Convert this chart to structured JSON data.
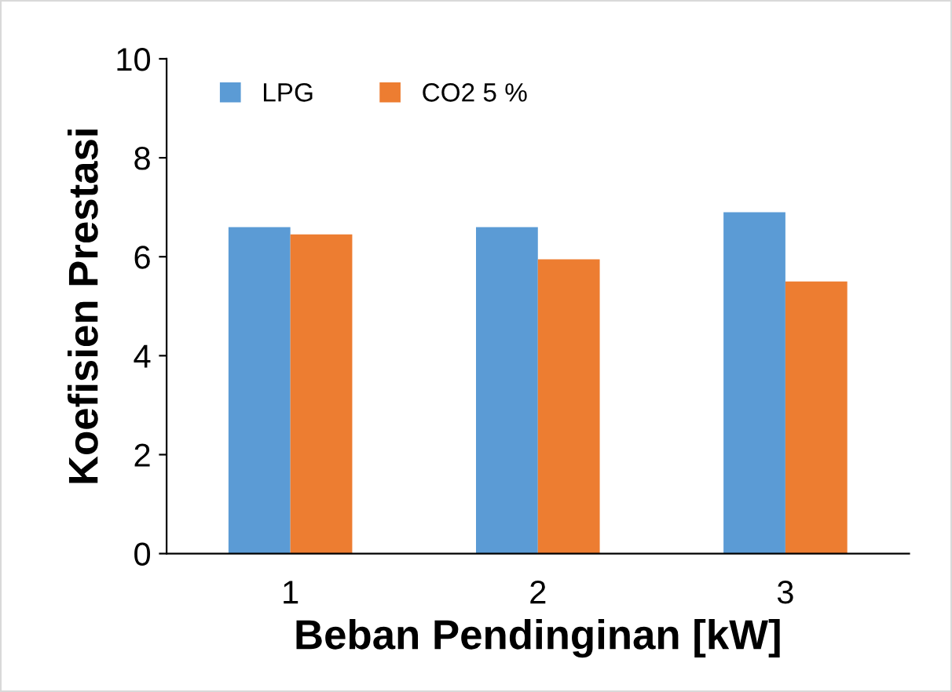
{
  "chart_data": {
    "type": "bar",
    "xlabel": "Beban Pendinginan [kW]",
    "ylabel": "Koefisien Prestasi",
    "categories": [
      "1",
      "2",
      "3"
    ],
    "series": [
      {
        "name": "LPG",
        "color": "#5b9bd5",
        "values": [
          6.6,
          6.6,
          6.9
        ]
      },
      {
        "name": "CO2 5 %",
        "color": "#ed7d31",
        "values": [
          6.45,
          5.95,
          5.5
        ]
      }
    ],
    "ylim": [
      0,
      10
    ],
    "yticks": [
      0,
      2,
      4,
      6,
      8,
      10
    ],
    "grid": false,
    "legend": "top left"
  }
}
